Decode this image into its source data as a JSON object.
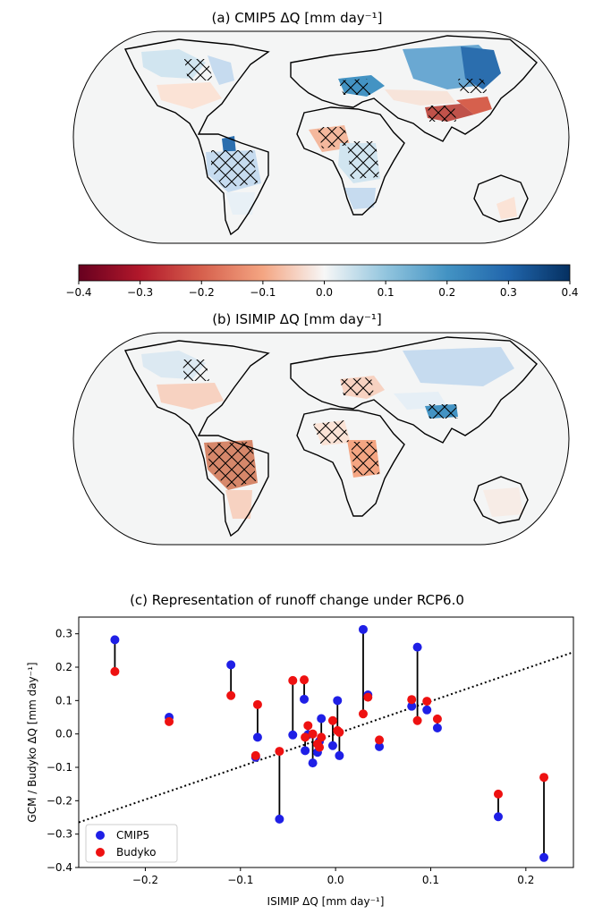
{
  "panels": {
    "a": {
      "title": "(a) CMIP5 ΔQ [mm day⁻¹]"
    },
    "b": {
      "title": "(b) ISIMIP ΔQ [mm day⁻¹]"
    }
  },
  "colorbar": {
    "min": -0.4,
    "max": 0.4,
    "ticks": [
      "−0.4",
      "−0.3",
      "−0.2",
      "−0.1",
      "0.0",
      "0.1",
      "0.2",
      "0.3",
      "0.4"
    ],
    "colormap": "RdBu",
    "colors": [
      "#67001f",
      "#b2182b",
      "#d6604d",
      "#f4a582",
      "#f7f7f7",
      "#92c5de",
      "#4393c3",
      "#2166ac",
      "#053061"
    ]
  },
  "chart_data": {
    "type": "scatter",
    "title": "(c) Representation of runoff change under RCP6.0",
    "xlabel": "ISIMIP ΔQ [mm day⁻¹]",
    "ylabel": "GCM / Budyko ΔQ [mm day⁻¹]",
    "xlim": [
      -0.27,
      0.25
    ],
    "ylim": [
      -0.4,
      0.35
    ],
    "xticks": [
      -0.2,
      -0.1,
      0.0,
      0.1,
      0.2
    ],
    "yticks": [
      -0.4,
      -0.3,
      -0.2,
      -0.1,
      0.0,
      0.1,
      0.2,
      0.3
    ],
    "x_tick_labels": [
      "−0.2",
      "−0.1",
      "0.0",
      "0.1",
      "0.2"
    ],
    "y_tick_labels": [
      "−0.4",
      "−0.3",
      "−0.2",
      "−0.1",
      "0.0",
      "0.1",
      "0.2",
      "0.3"
    ],
    "reference_line": {
      "style": "dotted",
      "x": [
        -0.27,
        0.25
      ],
      "y": [
        -0.265,
        0.245
      ]
    },
    "legend_position": "lower-left",
    "series": [
      {
        "name": "CMIP5",
        "color": "#1f1fe6",
        "x": [
          -0.232,
          -0.175,
          -0.11,
          -0.082,
          -0.084,
          -0.059,
          -0.045,
          -0.033,
          -0.032,
          -0.029,
          -0.024,
          -0.019,
          -0.015,
          -0.017,
          -0.003,
          0.002,
          0.004,
          0.029,
          0.034,
          0.046,
          0.08,
          0.086,
          0.096,
          0.107,
          0.171,
          0.219
        ],
        "y": [
          0.282,
          0.05,
          0.207,
          -0.01,
          -0.07,
          -0.255,
          -0.003,
          0.104,
          -0.05,
          -0.002,
          -0.087,
          -0.055,
          0.046,
          -0.022,
          -0.035,
          0.1,
          -0.065,
          0.313,
          0.117,
          -0.038,
          0.083,
          0.26,
          0.072,
          0.018,
          -0.248,
          -0.37
        ]
      },
      {
        "name": "Budyko",
        "color": "#ee1111",
        "x": [
          -0.232,
          -0.175,
          -0.11,
          -0.082,
          -0.084,
          -0.059,
          -0.045,
          -0.033,
          -0.032,
          -0.029,
          -0.024,
          -0.019,
          -0.015,
          -0.017,
          -0.003,
          0.002,
          0.004,
          0.029,
          0.034,
          0.046,
          0.08,
          0.086,
          0.096,
          0.107,
          0.171,
          0.219
        ],
        "y": [
          0.187,
          0.037,
          0.115,
          0.088,
          -0.065,
          -0.052,
          0.16,
          0.162,
          -0.01,
          0.025,
          0.0,
          -0.03,
          -0.01,
          -0.04,
          0.04,
          0.01,
          0.005,
          0.06,
          0.11,
          -0.018,
          0.103,
          0.04,
          0.098,
          0.045,
          -0.18,
          -0.13
        ]
      }
    ]
  }
}
